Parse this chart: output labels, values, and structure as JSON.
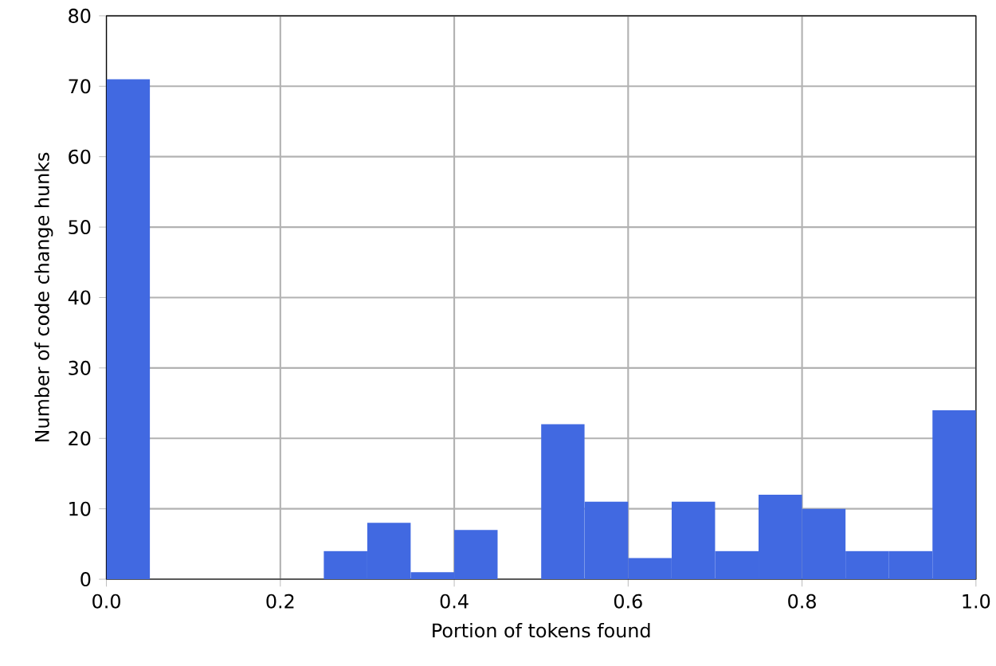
{
  "chart_data": {
    "type": "histogram",
    "xlabel": "Portion of tokens found",
    "ylabel": "Number of code change hunks",
    "bins": [
      0,
      0.05,
      0.1,
      0.15,
      0.2,
      0.25,
      0.3,
      0.35,
      0.4,
      0.45,
      0.5,
      0.55,
      0.6,
      0.65,
      0.7,
      0.75,
      0.8,
      0.85,
      0.9,
      0.95,
      1.0
    ],
    "values": [
      71,
      0,
      0,
      0,
      0,
      4,
      8,
      1,
      7,
      0,
      22,
      11,
      3,
      11,
      4,
      12,
      10,
      4,
      4,
      24
    ],
    "color": "#4169e1",
    "xlim": [
      0,
      1
    ],
    "ylim": [
      0,
      80
    ],
    "xticks": [
      {
        "value": 0,
        "label": "0.0"
      },
      0.2,
      0.4,
      0.6,
      0.8,
      {
        "value": 1,
        "label": "1.0"
      }
    ],
    "yticks": [
      0,
      10,
      20,
      30,
      40,
      50,
      60,
      70,
      80
    ],
    "grid": true
  }
}
